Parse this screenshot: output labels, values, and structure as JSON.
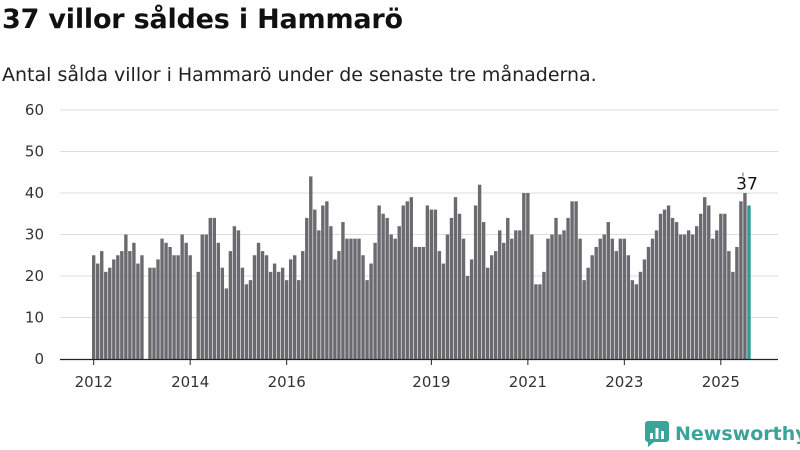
{
  "header": {
    "title": "37 villor såldes i Hammarö",
    "subtitle": "Antal sålda villor i Hammarö under de senaste tre månaderna."
  },
  "branding": {
    "logo_text": "Newsworthy",
    "logo_color": "#3aa49b",
    "logo_icon": "newsworthy-chart-icon"
  },
  "colors": {
    "bar": "#6b6a6f",
    "highlight": "#2a9d96",
    "grid": "#dddddd",
    "axis": "#222222"
  },
  "chart_data": {
    "type": "bar",
    "title": "37 villor såldes i Hammarö",
    "subtitle": "Antal sålda villor i Hammarö under de senaste tre månaderna.",
    "x_start": "2012-01",
    "x_tick_labels": [
      "2012",
      "2014",
      "2016",
      "2019",
      "2021",
      "2023",
      "2025"
    ],
    "x_tick_positions": [
      "2012-01",
      "2014-01",
      "2016-01",
      "2019-01",
      "2021-01",
      "2023-01",
      "2025-01"
    ],
    "ylim": [
      0,
      60
    ],
    "y_ticks": [
      0,
      10,
      20,
      30,
      40,
      50,
      60
    ],
    "grid": true,
    "highlight_label": "37",
    "values": [
      25,
      23,
      26,
      21,
      22,
      24,
      25,
      26,
      30,
      26,
      28,
      23,
      25,
      null,
      22,
      22,
      24,
      29,
      28,
      27,
      25,
      25,
      30,
      28,
      25,
      null,
      21,
      30,
      30,
      34,
      34,
      28,
      22,
      17,
      26,
      32,
      31,
      22,
      18,
      19,
      25,
      28,
      26,
      25,
      21,
      23,
      21,
      22,
      19,
      24,
      25,
      19,
      26,
      34,
      44,
      36,
      31,
      37,
      38,
      32,
      24,
      26,
      33,
      29,
      29,
      29,
      29,
      25,
      19,
      23,
      28,
      37,
      35,
      34,
      30,
      29,
      32,
      37,
      38,
      39,
      27,
      27,
      27,
      37,
      36,
      36,
      26,
      23,
      30,
      34,
      39,
      35,
      29,
      20,
      24,
      37,
      42,
      33,
      22,
      25,
      26,
      31,
      28,
      34,
      29,
      31,
      31,
      40,
      40,
      30,
      18,
      18,
      21,
      29,
      30,
      34,
      30,
      31,
      34,
      38,
      38,
      29,
      19,
      22,
      25,
      27,
      29,
      30,
      33,
      29,
      26,
      29,
      29,
      25,
      19,
      18,
      21,
      24,
      27,
      29,
      31,
      35,
      36,
      37,
      34,
      33,
      30,
      30,
      31,
      30,
      32,
      35,
      39,
      37,
      29,
      31,
      35,
      35,
      26,
      21,
      27,
      38,
      40,
      37
    ]
  }
}
